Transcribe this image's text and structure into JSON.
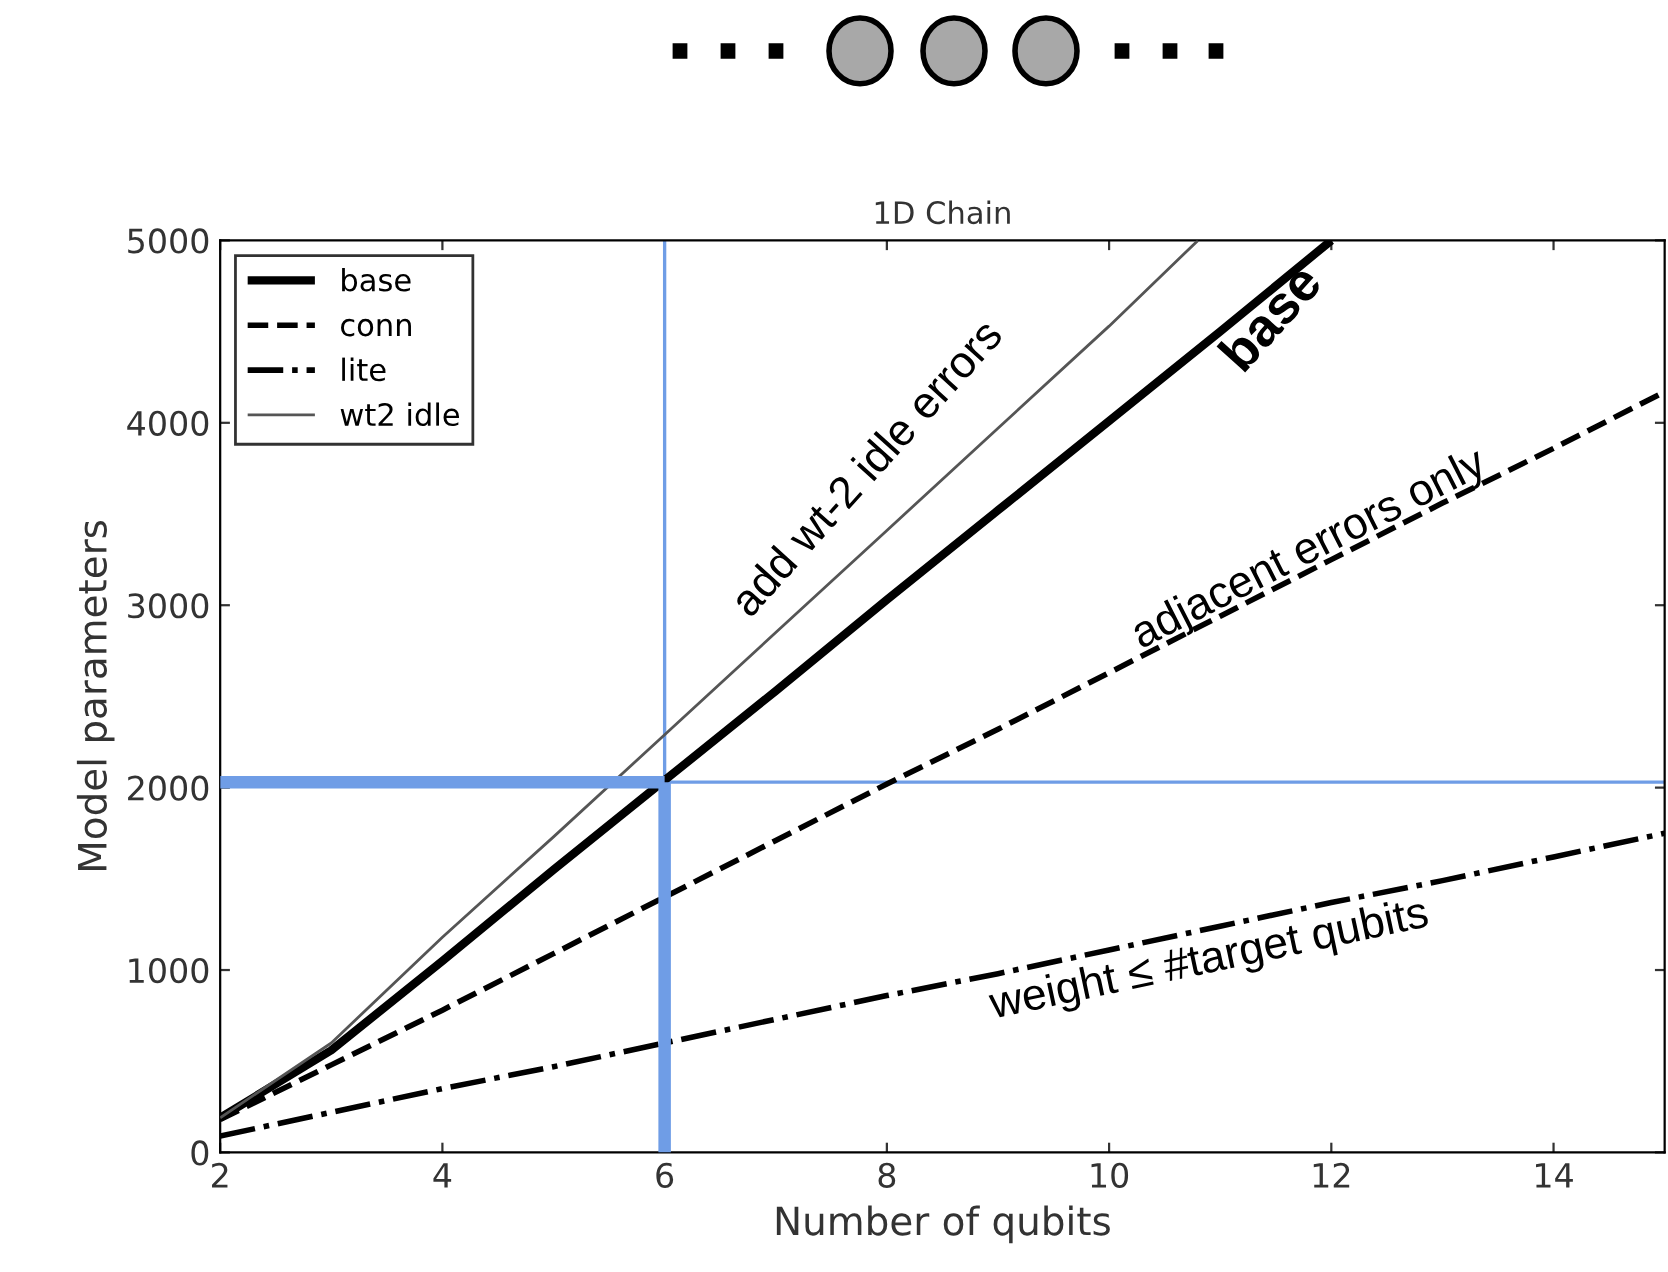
{
  "chart_data": {
    "type": "line",
    "title": "1D Chain",
    "xlabel": "Number of qubits",
    "ylabel": "Model parameters",
    "xlim": [
      2,
      15
    ],
    "ylim": [
      0,
      5000
    ],
    "xticks": [
      2,
      4,
      6,
      8,
      10,
      12,
      14
    ],
    "yticks": [
      0,
      1000,
      2000,
      3000,
      4000,
      5000
    ],
    "grid": false,
    "legend": "top left",
    "marker": "none",
    "series": [
      {
        "name": "base",
        "color": "#000000",
        "line_style": "solid",
        "x": [
          2,
          3,
          4,
          5,
          6,
          7,
          8,
          9,
          10,
          11,
          12
        ],
        "values": [
          190,
          560,
          1050,
          1550,
          2040,
          2530,
          3030,
          3520,
          4010,
          4500,
          5000
        ]
      },
      {
        "name": "conn",
        "color": "#000000",
        "line_style": "dashed",
        "x": [
          2,
          3,
          4,
          5,
          6,
          7,
          8,
          9,
          10,
          11,
          12,
          13,
          14,
          15
        ],
        "values": [
          180,
          480,
          780,
          1090,
          1400,
          1710,
          2020,
          2320,
          2630,
          2940,
          3250,
          3560,
          3860,
          4170
        ]
      },
      {
        "name": "lite",
        "color": "#000000",
        "line_style": "dashdot",
        "x": [
          2,
          3,
          4,
          5,
          6,
          7,
          8,
          9,
          10,
          11,
          12,
          13,
          14,
          15
        ],
        "values": [
          90,
          220,
          350,
          470,
          600,
          730,
          860,
          980,
          1110,
          1240,
          1370,
          1490,
          1620,
          1750
        ]
      },
      {
        "name": "wt2 idle",
        "color": "#555555",
        "line_style": "solid",
        "x": [
          2,
          3,
          4,
          5,
          6,
          7,
          8,
          9,
          10,
          10.8
        ],
        "values": [
          190,
          600,
          1180,
          1730,
          2290,
          2850,
          3410,
          3970,
          4530,
          5000
        ]
      },
      {
        "color": "#6f9de6",
        "line_style": "solid",
        "x": [
          6,
          6
        ],
        "values": [
          0,
          2030
        ]
      },
      {
        "color": "#6f9de6",
        "line_style": "solid",
        "x": [
          2,
          6
        ],
        "values": [
          2030,
          2030
        ]
      }
    ],
    "ref_lines": [
      {
        "axis": "x",
        "value": 6,
        "color": "#6f9de6"
      },
      {
        "axis": "y",
        "value": 2030,
        "color": "#6f9de6"
      }
    ],
    "annotations": [
      "add wt-2 idle errors",
      "base",
      "adjacent errors only",
      "weight ≤ #target qubits"
    ]
  }
}
